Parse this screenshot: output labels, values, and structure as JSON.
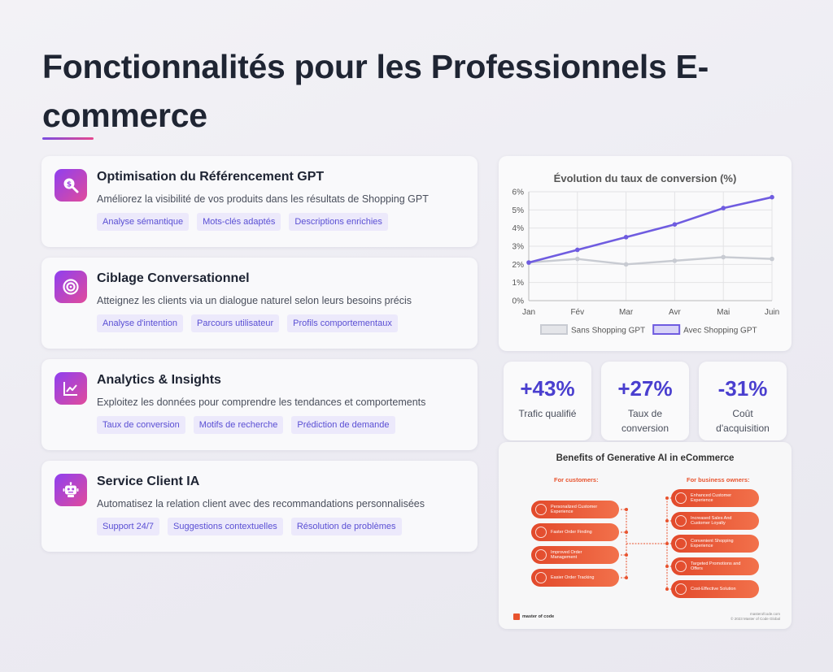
{
  "page": {
    "title": "Fonctionnalités pour les Professionnels E-commerce"
  },
  "features": [
    {
      "title": "Optimisation du Référencement GPT",
      "description": "Améliorez la visibilité de vos produits dans les résultats de Shopping GPT",
      "icon": "search-money-icon",
      "tags": [
        "Analyse sémantique",
        "Mots-clés adaptés",
        "Descriptions enrichies"
      ]
    },
    {
      "title": "Ciblage Conversationnel",
      "description": "Atteignez les clients via un dialogue naturel selon leurs besoins précis",
      "icon": "target-icon",
      "tags": [
        "Analyse d'intention",
        "Parcours utilisateur",
        "Profils comportementaux"
      ]
    },
    {
      "title": "Analytics & Insights",
      "description": "Exploitez les données pour comprendre les tendances et comportements",
      "icon": "chart-line-icon",
      "tags": [
        "Taux de conversion",
        "Motifs de recherche",
        "Prédiction de demande"
      ]
    },
    {
      "title": "Service Client IA",
      "description": "Automatisez la relation client avec des recommandations personnalisées",
      "icon": "robot-icon",
      "tags": [
        "Support 24/7",
        "Suggestions contextuelles",
        "Résolution de problèmes"
      ]
    }
  ],
  "chart_data": {
    "type": "line",
    "title": "Évolution du taux de conversion (%)",
    "categories": [
      "Jan",
      "Fév",
      "Mar",
      "Avr",
      "Mai",
      "Juin"
    ],
    "y_ticks": [
      "0%",
      "1%",
      "2%",
      "3%",
      "4%",
      "5%",
      "6%"
    ],
    "ylim": [
      0,
      6
    ],
    "grid": true,
    "legend_position": "bottom",
    "series": [
      {
        "name": "Sans Shopping GPT",
        "values": [
          2.1,
          2.3,
          2.0,
          2.2,
          2.4,
          2.3
        ],
        "color": "#c8cbd2"
      },
      {
        "name": "Avec Shopping GPT",
        "values": [
          2.1,
          2.8,
          3.5,
          4.2,
          5.1,
          5.7
        ],
        "color": "#6f5ce0"
      }
    ]
  },
  "stats": [
    {
      "value": "+43%",
      "label": "Trafic qualifié"
    },
    {
      "value": "+27%",
      "label": "Taux de conversion"
    },
    {
      "value": "-31%",
      "label": "Coût d'acquisition"
    }
  ],
  "infographic": {
    "title": "Benefits of Generative AI in eCommerce",
    "customers_heading": "For customers:",
    "owners_heading": "For business owners:",
    "customers": [
      "Personalized Customer Experience",
      "Faster Order Finding",
      "Improved Order Management",
      "Easier Order Tracking"
    ],
    "owners": [
      "Enhanced Customer Experience",
      "Increased Sales And Customer Loyalty",
      "Convenient Shopping Experience",
      "Targeted Promotions and Offers",
      "Cost-Effective Solution"
    ],
    "brand": "master of code",
    "site": "masterofcode.com",
    "copyright": "© 2023 Master of Code Global"
  }
}
